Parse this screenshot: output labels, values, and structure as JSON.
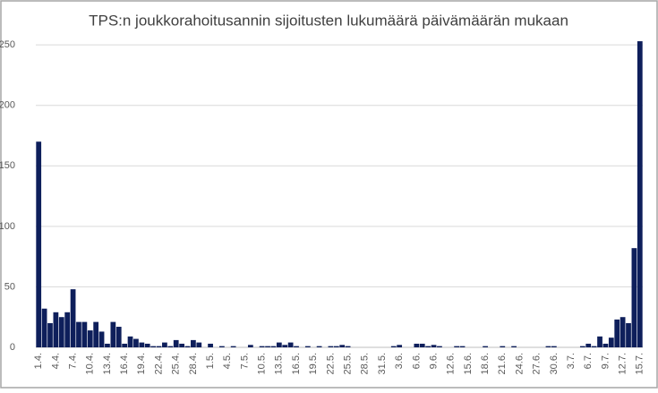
{
  "chart_data": {
    "type": "bar",
    "title": "TPS:n joukkorahoitusannin sijoitusten lukumäärä päivämäärän mukaan",
    "categories": [
      "1.4.",
      null,
      null,
      "4.4.",
      null,
      null,
      "7.4.",
      null,
      null,
      "10.4.",
      null,
      null,
      "13.4.",
      null,
      null,
      "16.4.",
      null,
      null,
      "19.4.",
      null,
      null,
      "22.4.",
      null,
      null,
      "25.4.",
      null,
      null,
      "28.4.",
      null,
      null,
      "1.5.",
      null,
      null,
      "4.5.",
      null,
      null,
      "7.5.",
      null,
      null,
      "10.5.",
      null,
      null,
      "13.5.",
      null,
      null,
      "16.5.",
      null,
      null,
      "19.5.",
      null,
      null,
      "22.5.",
      null,
      null,
      "25.5.",
      null,
      null,
      "28.5.",
      null,
      null,
      "31.5.",
      null,
      null,
      "3.6.",
      null,
      null,
      "6.6.",
      null,
      null,
      "9.6.",
      null,
      null,
      "12.6.",
      null,
      null,
      "15.6.",
      null,
      null,
      "18.6.",
      null,
      null,
      "21.6.",
      null,
      null,
      "24.6.",
      null,
      null,
      "27.6.",
      null,
      null,
      "30.6.",
      null,
      null,
      "3.7.",
      null,
      null,
      "6.7.",
      null,
      null,
      "9.7.",
      null,
      null,
      "12.7.",
      null,
      null,
      "15.7."
    ],
    "values": [
      170,
      32,
      20,
      29,
      25,
      29,
      48,
      21,
      21,
      14,
      21,
      13,
      3,
      21,
      17,
      3,
      9,
      7,
      4,
      3,
      1,
      1,
      4,
      1,
      6,
      3,
      1,
      6,
      4,
      0,
      3,
      0,
      1,
      0,
      1,
      0,
      0,
      2,
      0,
      1,
      1,
      1,
      4,
      2,
      4,
      1,
      0,
      1,
      0,
      1,
      0,
      1,
      1,
      2,
      1,
      0,
      0,
      0,
      0,
      0,
      0,
      0,
      1,
      2,
      0,
      0,
      3,
      3,
      1,
      2,
      1,
      0,
      0,
      1,
      1,
      0,
      0,
      0,
      1,
      0,
      0,
      1,
      0,
      1,
      0,
      0,
      0,
      0,
      0,
      1,
      1,
      0,
      0,
      0,
      0,
      1,
      3,
      1,
      9,
      3,
      8,
      23,
      25,
      20,
      82,
      253
    ],
    "color": "#0e1f5b",
    "ylim": [
      0,
      256
    ],
    "yticks": [
      0,
      50,
      100,
      150,
      200,
      250
    ],
    "grid": true
  }
}
